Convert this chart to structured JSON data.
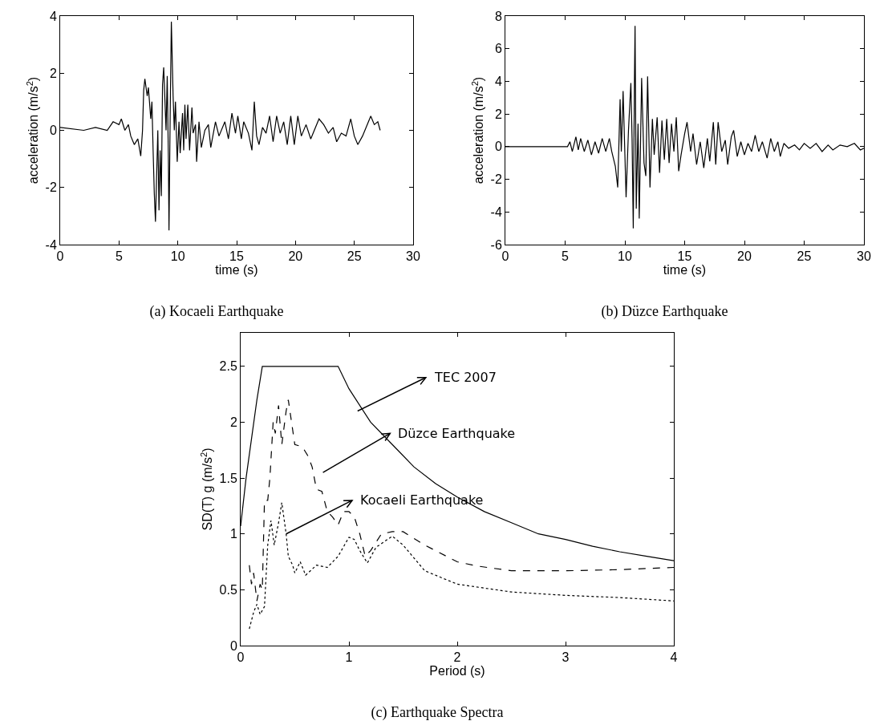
{
  "chart_data": [
    {
      "type": "line",
      "title": "(a) Kocaeli Earthquake",
      "xlabel": "time (s)",
      "ylabel": "acceleration (m/s$^{2}$)",
      "xlim": [
        0,
        30
      ],
      "xticks": [
        0,
        5,
        10,
        15,
        20,
        25,
        30
      ],
      "ylim": [
        -4,
        4
      ],
      "yticks": [
        -4,
        -2,
        0,
        2,
        4
      ],
      "grid": false,
      "marker": "none",
      "line_style": "solid",
      "series": [
        {
          "color": "#000000",
          "x": [
            0,
            2,
            3,
            4,
            4.5,
            5,
            5.2,
            5.5,
            5.8,
            6.0,
            6.3,
            6.6,
            6.85,
            7.0,
            7.1,
            7.2,
            7.4,
            7.5,
            7.7,
            7.8,
            7.9,
            8.0,
            8.1,
            8.3,
            8.4,
            8.5,
            8.6,
            8.7,
            8.8,
            9.0,
            9.1,
            9.2,
            9.25,
            9.35,
            9.45,
            9.6,
            9.7,
            9.8,
            9.95,
            10.1,
            10.2,
            10.4,
            10.5,
            10.6,
            10.7,
            10.85,
            11.0,
            11.2,
            11.3,
            11.5,
            11.6,
            11.8,
            12.0,
            12.3,
            12.6,
            12.8,
            13.2,
            13.5,
            14.0,
            14.3,
            14.6,
            14.9,
            15.1,
            15.4,
            15.6,
            16.0,
            16.3,
            16.5,
            16.7,
            16.9,
            17.2,
            17.5,
            17.8,
            18.1,
            18.4,
            18.7,
            19.0,
            19.3,
            19.6,
            19.9,
            20.2,
            20.5,
            20.9,
            21.3,
            21.6,
            22.0,
            22.4,
            22.8,
            23.2,
            23.5,
            23.9,
            24.3,
            24.7,
            25.0,
            25.3,
            25.7,
            26.0,
            26.4,
            26.7,
            27.0,
            27.2
          ],
          "values": [
            0.1,
            0.0,
            0.1,
            0.0,
            0.3,
            0.2,
            0.4,
            0.0,
            0.2,
            -0.2,
            -0.5,
            -0.3,
            -0.9,
            0.0,
            1.4,
            1.8,
            1.2,
            1.5,
            0.4,
            1.0,
            -0.7,
            -2.2,
            -3.2,
            0.0,
            -2.8,
            -0.7,
            -2.3,
            1.6,
            2.2,
            0.0,
            1.9,
            -1.0,
            -3.5,
            0.5,
            3.8,
            1.2,
            0.0,
            1.0,
            -1.1,
            0.3,
            -0.8,
            0.6,
            -0.7,
            0.9,
            -0.3,
            0.9,
            -0.7,
            0.8,
            -0.1,
            0.2,
            -1.1,
            0.3,
            -0.6,
            0.0,
            0.2,
            -0.6,
            0.3,
            -0.2,
            0.3,
            -0.3,
            0.6,
            -0.1,
            0.5,
            -0.3,
            0.3,
            -0.1,
            -0.7,
            1.0,
            -0.2,
            -0.5,
            0.1,
            -0.1,
            0.5,
            -0.4,
            0.5,
            -0.1,
            0.3,
            -0.5,
            0.5,
            -0.5,
            0.5,
            -0.2,
            0.2,
            -0.3,
            0.0,
            0.4,
            0.2,
            -0.1,
            0.1,
            -0.4,
            -0.1,
            -0.2,
            0.4,
            -0.2,
            -0.5,
            -0.2,
            0.1,
            0.5,
            0.2,
            0.3,
            0.0
          ]
        }
      ]
    },
    {
      "type": "line",
      "title": "(b) Düzce Earthquake",
      "xlabel": "time (s)",
      "ylabel": "acceleration (m/s$^{2}$)",
      "xlim": [
        0,
        30
      ],
      "xticks": [
        0,
        5,
        10,
        15,
        20,
        25,
        30
      ],
      "ylim": [
        -6,
        8
      ],
      "yticks": [
        -6,
        -4,
        -2,
        0,
        2,
        4,
        6,
        8
      ],
      "grid": false,
      "marker": "none",
      "line_style": "solid",
      "series": [
        {
          "color": "#000000",
          "x": [
            0,
            5.2,
            5.4,
            5.6,
            5.9,
            6.1,
            6.3,
            6.6,
            6.9,
            7.2,
            7.5,
            7.8,
            8.1,
            8.4,
            8.7,
            8.9,
            9.2,
            9.4,
            9.6,
            9.7,
            9.85,
            10.0,
            10.1,
            10.3,
            10.5,
            10.6,
            10.7,
            10.8,
            10.85,
            10.95,
            11.1,
            11.2,
            11.4,
            11.6,
            11.75,
            11.9,
            12.1,
            12.3,
            12.45,
            12.7,
            12.9,
            13.1,
            13.3,
            13.5,
            13.7,
            13.9,
            14.1,
            14.3,
            14.5,
            14.7,
            15.0,
            15.2,
            15.5,
            15.7,
            16.0,
            16.3,
            16.6,
            16.9,
            17.1,
            17.4,
            17.6,
            17.8,
            18.1,
            18.4,
            18.6,
            18.9,
            19.1,
            19.4,
            19.7,
            20.0,
            20.3,
            20.6,
            20.9,
            21.2,
            21.5,
            21.9,
            22.2,
            22.5,
            22.8,
            23.0,
            23.3,
            23.7,
            24.2,
            24.6,
            25.0,
            25.5,
            26.0,
            26.5,
            27.0,
            27.4,
            28.0,
            28.6,
            29.2,
            29.7,
            30
          ],
          "values": [
            0,
            0,
            0.3,
            -0.3,
            0.6,
            -0.2,
            0.5,
            -0.3,
            0.4,
            -0.5,
            0.3,
            -0.4,
            0.5,
            -0.3,
            0.5,
            -0.3,
            -1.2,
            -2.5,
            2.9,
            -0.3,
            3.4,
            -0.5,
            -3.1,
            1.0,
            3.9,
            0.5,
            -5.0,
            4.1,
            7.4,
            -3.8,
            1.4,
            -4.4,
            4.2,
            -1.0,
            -1.8,
            4.3,
            -2.5,
            1.7,
            -0.5,
            1.8,
            -1.6,
            1.6,
            -0.8,
            1.7,
            -1.0,
            1.4,
            -0.3,
            1.8,
            -1.5,
            -0.5,
            0.8,
            1.5,
            -0.3,
            0.8,
            -1.1,
            0.3,
            -1.3,
            0.5,
            -0.9,
            1.5,
            -1.1,
            1.5,
            -0.3,
            0.4,
            -1.1,
            0.6,
            1.0,
            -0.6,
            0.3,
            -0.5,
            0.2,
            -0.3,
            0.7,
            -0.3,
            0.3,
            -0.7,
            0.5,
            -0.3,
            0.3,
            -0.6,
            0.2,
            -0.1,
            0.1,
            -0.2,
            0.2,
            -0.1,
            0.2,
            -0.3,
            0.1,
            -0.2,
            0.1,
            0.0,
            0.2,
            -0.2,
            -0.1
          ]
        }
      ]
    },
    {
      "type": "line",
      "title": "(c) Earthquake Spectra",
      "xlabel": "Period (s)",
      "ylabel": "SD(T) g (m/s$^{2}$)",
      "xlim": [
        0,
        4
      ],
      "xticks": [
        0,
        1,
        2,
        3,
        4
      ],
      "ylim": [
        0,
        2.8
      ],
      "yticks": [
        0,
        0.5,
        1,
        1.5,
        2,
        2.5
      ],
      "grid": false,
      "marker": "none",
      "annotations": [
        "TEC 2007",
        "Düzce Earthquake",
        {
          "text": "Kocaeli Earthquake",
          "x": 0.42,
          "y": 1.0
        }
      ],
      "series": [
        {
          "color": "#000000",
          "line_style": "solid",
          "x": [
            0,
            0.05,
            0.1,
            0.15,
            0.2,
            0.9,
            1.0,
            1.2,
            1.4,
            1.6,
            1.8,
            2.0,
            2.25,
            2.5,
            2.75,
            3.0,
            3.25,
            3.5,
            3.75,
            4.0
          ],
          "values": [
            1.07,
            1.5,
            1.85,
            2.2,
            2.5,
            2.5,
            2.3,
            2.0,
            1.8,
            1.6,
            1.45,
            1.33,
            1.2,
            1.1,
            1.0,
            0.95,
            0.89,
            0.84,
            0.8,
            0.76
          ]
        },
        {
          "color": "#000000",
          "line_style": "dashed",
          "x": [
            0.08,
            0.1,
            0.12,
            0.15,
            0.18,
            0.2,
            0.22,
            0.25,
            0.27,
            0.3,
            0.32,
            0.35,
            0.38,
            0.42,
            0.44,
            0.47,
            0.5,
            0.57,
            0.62,
            0.66,
            0.7,
            0.75,
            0.8,
            0.85,
            0.9,
            0.95,
            1.0,
            1.05,
            1.1,
            1.15,
            1.2,
            1.3,
            1.4,
            1.5,
            1.7,
            2.0,
            2.2,
            2.5,
            3.0,
            3.5,
            4.0
          ],
          "values": [
            0.72,
            0.55,
            0.65,
            0.4,
            0.55,
            0.5,
            1.3,
            1.3,
            1.5,
            2.0,
            1.9,
            2.15,
            1.8,
            2.1,
            2.2,
            2.0,
            1.8,
            1.78,
            1.7,
            1.6,
            1.4,
            1.38,
            1.2,
            1.15,
            1.08,
            1.2,
            1.2,
            1.15,
            1.0,
            0.8,
            0.85,
            1.0,
            1.02,
            1.02,
            0.9,
            0.75,
            0.71,
            0.67,
            0.67,
            0.68,
            0.7
          ]
        },
        {
          "color": "#000000",
          "line_style": "dotted",
          "x": [
            0.08,
            0.12,
            0.15,
            0.18,
            0.22,
            0.25,
            0.28,
            0.31,
            0.35,
            0.38,
            0.42,
            0.44,
            0.48,
            0.5,
            0.55,
            0.6,
            0.7,
            0.8,
            0.9,
            1.0,
            1.05,
            1.1,
            1.17,
            1.25,
            1.4,
            1.5,
            1.7,
            2.0,
            2.5,
            3.0,
            3.5,
            4.0
          ],
          "values": [
            0.15,
            0.3,
            0.37,
            0.28,
            0.35,
            0.9,
            1.12,
            0.9,
            1.1,
            1.28,
            1.0,
            0.8,
            0.72,
            0.65,
            0.75,
            0.63,
            0.72,
            0.7,
            0.8,
            0.97,
            0.95,
            0.85,
            0.74,
            0.88,
            0.98,
            0.9,
            0.67,
            0.55,
            0.48,
            0.45,
            0.43,
            0.4
          ]
        }
      ]
    }
  ]
}
